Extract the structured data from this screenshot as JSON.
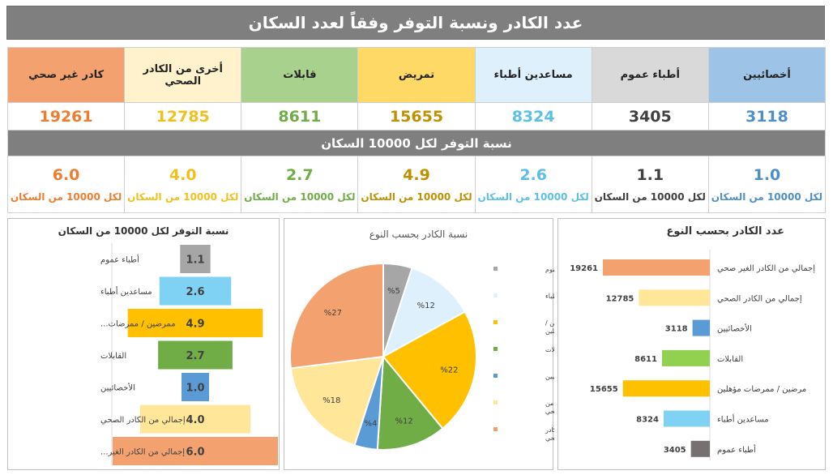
{
  "title": "عدد الكادر ونسبة التوفر وفقاً لعدد السكان",
  "table": {
    "columns": [
      {
        "header": "أخصائيين",
        "count": "3118",
        "rate": "1.0",
        "unit": "لكل 10000 من السكان",
        "header_bg": "#9dc3e6",
        "value_color": "#4f8fc8"
      },
      {
        "header": "أطباء عموم",
        "count": "3405",
        "rate": "1.1",
        "unit": "لكل 10000 من السكان",
        "header_bg": "#d9d9d9",
        "value_color": "#404040"
      },
      {
        "header": "مساعدين أطباء",
        "count": "8324",
        "rate": "2.6",
        "unit": "لكل 10000 من السكان",
        "header_bg": "#ddf0fb",
        "value_color": "#5bc0e8"
      },
      {
        "header": "تمريض",
        "count": "15655",
        "rate": "4.9",
        "unit": "لكل 10000 من السكان",
        "header_bg": "#ffd966",
        "value_color": "#bf9000"
      },
      {
        "header": "قابلات",
        "count": "8611",
        "rate": "2.7",
        "unit": "لكل 10000 من السكان",
        "header_bg": "#a9d18e",
        "value_color": "#70ad47"
      },
      {
        "header": "أخرى من الكادر الصحي",
        "count": "12785",
        "rate": "4.0",
        "unit": "لكل 10000 من السكان",
        "header_bg": "#fff2cc",
        "value_color": "#f2c01d"
      },
      {
        "header": "كادر غير صحي",
        "count": "19261",
        "rate": "6.0",
        "unit": "لكل 10000 من السكان",
        "header_bg": "#f4a170",
        "value_color": "#ed7d31"
      }
    ],
    "rate_header": "نسبة التوفر لكل 10000 السكان"
  },
  "chart_data": [
    {
      "type": "bar",
      "title": "نسبة التوفر لكل 10000 من السكان",
      "categories": [
        "أطباء عموم",
        "مساعدين أطباء",
        "ممرضين / ممرضات...",
        "القابلات",
        "الأخصائيين",
        "إجمالي من الكادر الصحي",
        "إجمالي من الكادر الغير..."
      ],
      "values": [
        1.1,
        2.6,
        4.9,
        2.7,
        1.0,
        4.0,
        6.0
      ],
      "value_labels": [
        "1.1",
        "2.6",
        "4.9",
        "2.7",
        "1.0",
        "4.0",
        "6.0"
      ],
      "colors": [
        "#a6a6a6",
        "#7fd2f3",
        "#ffc000",
        "#70ad47",
        "#5b9bd5",
        "#ffe699",
        "#f4a170"
      ]
    },
    {
      "type": "pie",
      "title": "نسبة الكادر بحسب النوع",
      "slices": [
        {
          "label": "أطباء عموم",
          "value": 5,
          "pct_label": "%5",
          "color": "#a6a6a6"
        },
        {
          "label": "مساعدين أطباء",
          "value": 12,
          "pct_label": "%12",
          "color": "#ddf0fb"
        },
        {
          "label": "ممرضين / ممرضات مؤهلين",
          "value": 22,
          "pct_label": "%22",
          "color": "#ffc000"
        },
        {
          "label": "القابلات",
          "value": 12,
          "pct_label": "%12",
          "color": "#70ad47"
        },
        {
          "label": "الأخصائيين",
          "value": 4,
          "pct_label": "%4",
          "color": "#5b9bd5"
        },
        {
          "label": "إجمالي من الكادر الصحي",
          "value": 18,
          "pct_label": "%18",
          "color": "#ffe699"
        },
        {
          "label": "إجمالي من الكادر الغير صحي",
          "value": 27,
          "pct_label": "%27",
          "color": "#f4a170"
        }
      ],
      "legend_position": "right"
    },
    {
      "type": "bar",
      "title": "عدد الكادر بحسب النوع",
      "categories": [
        "إجمالي من الكادر الغير صحي",
        "إجمالي من الكادر الصحي",
        "الأخصائيين",
        "القابلات",
        "مرضين / ممرضات مؤهلين",
        "مساعدين أطباء",
        "أطباء عموم"
      ],
      "values": [
        19261,
        12785,
        3118,
        8611,
        15655,
        8324,
        3405
      ],
      "value_labels": [
        "19261",
        "12785",
        "3118",
        "8611",
        "15655",
        "8324",
        "3405"
      ],
      "colors": [
        "#f4a170",
        "#ffe699",
        "#5b9bd5",
        "#92d050",
        "#ffc000",
        "#7fd2f3",
        "#767171"
      ]
    }
  ]
}
